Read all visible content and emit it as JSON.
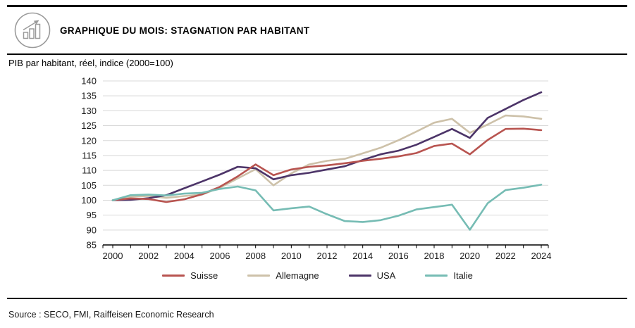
{
  "header": {
    "title": "GRAPHIQUE DU MOIS: STAGNATION PAR HABITANT",
    "icon": "bar-chart-growth-icon"
  },
  "chart_data": {
    "type": "line",
    "title": "PIB par habitant, réel, indice (2000=100)",
    "x": [
      2000,
      2001,
      2002,
      2003,
      2004,
      2005,
      2006,
      2007,
      2008,
      2009,
      2010,
      2011,
      2012,
      2013,
      2014,
      2015,
      2016,
      2017,
      2018,
      2019,
      2020,
      2021,
      2022,
      2023,
      2024
    ],
    "series": [
      {
        "name": "Suisse",
        "color": "#b85450",
        "values": [
          100,
          100.6,
          100.4,
          99.4,
          100.3,
          102,
          104.5,
          108,
          112,
          108.4,
          110.3,
          111.2,
          111.7,
          112.4,
          113.2,
          113.9,
          114.7,
          115.8,
          118.2,
          119,
          115.4,
          120.2,
          123.9,
          124,
          123.5
        ]
      },
      {
        "name": "Allemagne",
        "color": "#cdc1a9",
        "values": [
          100,
          101.2,
          101.4,
          100.8,
          101.4,
          101.9,
          104.2,
          107.3,
          110.4,
          105,
          109,
          112,
          113.2,
          113.9,
          115.7,
          117.6,
          120.1,
          123,
          126,
          127.3,
          122.6,
          125.4,
          128.4,
          128.1,
          127.3
        ]
      },
      {
        "name": "USA",
        "color": "#4c3468",
        "values": [
          100,
          100.1,
          100.7,
          101.7,
          104,
          106.3,
          108.6,
          111.2,
          110.7,
          107,
          108.4,
          109.2,
          110.3,
          111.4,
          113.5,
          115.4,
          116.6,
          118.6,
          121.2,
          123.9,
          120.9,
          127.6,
          130.6,
          133.6,
          136.2
        ]
      },
      {
        "name": "Italie",
        "color": "#76bcb4",
        "values": [
          100,
          101.7,
          101.9,
          101.6,
          102.2,
          102.5,
          103.8,
          104.6,
          103.3,
          96.6,
          97.3,
          97.9,
          95.3,
          93,
          92.7,
          93.3,
          94.8,
          96.9,
          97.7,
          98.5,
          90.1,
          99,
          103.4,
          104.2,
          105.2
        ]
      }
    ],
    "xlim": [
      2000,
      2024
    ],
    "ylim": [
      85,
      140
    ],
    "ytick_step": 5,
    "xticks": [
      2000,
      2002,
      2004,
      2006,
      2008,
      2010,
      2012,
      2014,
      2016,
      2018,
      2020,
      2022,
      2024
    ],
    "grid": "horizontal-only",
    "legend_position": "bottom",
    "legend_marker": "line"
  },
  "footer": {
    "source": "Source : SECO, FMI, Raiffeisen Economic Research"
  },
  "colors": {
    "rule": "#000000",
    "axis": "#000000",
    "gridline": "#d8d8d8",
    "icon": "#9a9a9a"
  }
}
